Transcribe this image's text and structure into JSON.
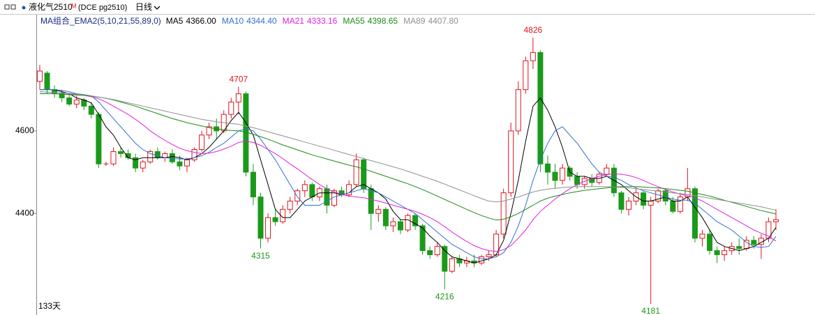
{
  "chart_data": {
    "type": "candlestick",
    "title": "液化气2510",
    "title_tag": "M",
    "subtitle": "(DCE pg2510)",
    "period": "日线",
    "indicator": "MA组合_EMA2(5,10,21,55,89,0)",
    "bar_count": "133天",
    "ylim": [
      4154,
      4880
    ],
    "yticks": [
      4600,
      4400
    ],
    "up_color": "#e0141e",
    "down_color": "#1a9a1a",
    "candles": {
      "open": [
        4720,
        4740,
        4700,
        4690,
        4680,
        4665,
        4675,
        4660,
        4640,
        4520,
        4520,
        4550,
        4545,
        4535,
        4510,
        4525,
        4550,
        4535,
        4545,
        4525,
        4515,
        4530,
        4555,
        4590,
        4610,
        4600,
        4640,
        4670,
        4690,
        4500,
        4440,
        4340,
        4390,
        4380,
        4410,
        4430,
        4455,
        4470,
        4440,
        4460,
        4420,
        4455,
        4445,
        4470,
        4530,
        4460,
        4400,
        4410,
        4370,
        4380,
        4360,
        4395,
        4370,
        4310,
        4300,
        4320,
        4260,
        4290,
        4280,
        4285,
        4280,
        4295,
        4300,
        4350,
        4450,
        4600,
        4700,
        4770,
        4790,
        4520,
        4500,
        4480,
        4510,
        4490,
        4470,
        4485,
        4475,
        4495,
        4510,
        4450,
        4410,
        4430,
        4450,
        4420,
        4430,
        4455,
        4430,
        4405,
        4440,
        4460,
        4340,
        4350,
        4310,
        4300,
        4310,
        4320,
        4315,
        4335,
        4325,
        4340,
        4380
      ],
      "high": [
        4760,
        4745,
        4710,
        4700,
        4690,
        4685,
        4680,
        4670,
        4645,
        4525,
        4560,
        4560,
        4555,
        4545,
        4530,
        4555,
        4560,
        4550,
        4555,
        4540,
        4535,
        4560,
        4600,
        4620,
        4630,
        4650,
        4680,
        4707,
        4695,
        4520,
        4450,
        4400,
        4410,
        4420,
        4440,
        4460,
        4480,
        4475,
        4465,
        4470,
        4460,
        4465,
        4480,
        4545,
        4535,
        4470,
        4420,
        4415,
        4390,
        4385,
        4400,
        4400,
        4375,
        4320,
        4330,
        4325,
        4295,
        4300,
        4295,
        4300,
        4300,
        4310,
        4360,
        4460,
        4620,
        4720,
        4780,
        4826,
        4795,
        4540,
        4520,
        4520,
        4515,
        4500,
        4490,
        4495,
        4500,
        4520,
        4520,
        4455,
        4440,
        4460,
        4455,
        4440,
        4460,
        4460,
        4440,
        4450,
        4510,
        4465,
        4360,
        4360,
        4320,
        4320,
        4330,
        4340,
        4345,
        4345,
        4350,
        4390,
        4410
      ],
      "low": [
        4700,
        4690,
        4680,
        4670,
        4660,
        4655,
        4650,
        4630,
        4510,
        4515,
        4515,
        4535,
        4530,
        4500,
        4500,
        4520,
        4530,
        4525,
        4520,
        4505,
        4500,
        4525,
        4550,
        4580,
        4580,
        4595,
        4630,
        4640,
        4490,
        4420,
        4315,
        4330,
        4370,
        4375,
        4400,
        4420,
        4440,
        4430,
        4430,
        4400,
        4415,
        4440,
        4440,
        4465,
        4450,
        4360,
        4380,
        4360,
        4355,
        4350,
        4355,
        4360,
        4300,
        4290,
        4295,
        4216,
        4255,
        4270,
        4270,
        4270,
        4275,
        4285,
        4295,
        4340,
        4440,
        4590,
        4690,
        4750,
        4500,
        4470,
        4460,
        4470,
        4480,
        4460,
        4460,
        4465,
        4470,
        4490,
        4440,
        4400,
        4395,
        4420,
        4410,
        4181,
        4425,
        4420,
        4400,
        4400,
        4430,
        4330,
        4320,
        4300,
        4280,
        4285,
        4300,
        4300,
        4310,
        4315,
        4290,
        4330,
        4360
      ],
      "close": [
        4745,
        4700,
        4690,
        4680,
        4665,
        4675,
        4660,
        4640,
        4520,
        4520,
        4550,
        4545,
        4535,
        4510,
        4525,
        4550,
        4535,
        4545,
        4525,
        4515,
        4530,
        4555,
        4590,
        4610,
        4600,
        4640,
        4670,
        4690,
        4500,
        4440,
        4340,
        4390,
        4380,
        4410,
        4430,
        4455,
        4470,
        4440,
        4460,
        4420,
        4455,
        4445,
        4470,
        4530,
        4460,
        4400,
        4410,
        4370,
        4380,
        4360,
        4395,
        4370,
        4310,
        4300,
        4320,
        4260,
        4290,
        4280,
        4285,
        4280,
        4295,
        4300,
        4350,
        4450,
        4600,
        4700,
        4770,
        4790,
        4520,
        4500,
        4480,
        4510,
        4490,
        4470,
        4485,
        4475,
        4495,
        4510,
        4450,
        4410,
        4430,
        4450,
        4420,
        4430,
        4455,
        4430,
        4405,
        4440,
        4460,
        4340,
        4350,
        4310,
        4300,
        4310,
        4320,
        4315,
        4335,
        4325,
        4340,
        4380,
        4385
      ]
    },
    "series": [
      {
        "name": "MA5",
        "color": "#000000",
        "current": {
          "value": 4366,
          "label": "4366.00"
        },
        "values": [
          4700,
          4700,
          4700,
          4695,
          4690,
          4680,
          4675,
          4668,
          4640,
          4610,
          4590,
          4560,
          4535,
          4530,
          4535,
          4535,
          4535,
          4535,
          4538,
          4535,
          4530,
          4535,
          4545,
          4560,
          4580,
          4600,
          4625,
          4645,
          4620,
          4590,
          4530,
          4470,
          4410,
          4390,
          4390,
          4410,
          4430,
          4440,
          4450,
          4450,
          4450,
          4445,
          4450,
          4465,
          4470,
          4460,
          4450,
          4435,
          4405,
          4385,
          4385,
          4375,
          4365,
          4345,
          4330,
          4310,
          4295,
          4290,
          4285,
          4280,
          4285,
          4290,
          4300,
          4335,
          4400,
          4480,
          4575,
          4660,
          4680,
          4650,
          4610,
          4560,
          4500,
          4490,
          4490,
          4485,
          4485,
          4490,
          4480,
          4470,
          4455,
          4440,
          4430,
          4430,
          4435,
          4440,
          4430,
          4430,
          4440,
          4415,
          4390,
          4360,
          4330,
          4320,
          4315,
          4310,
          4315,
          4320,
          4330,
          4340,
          4366
        ]
      },
      {
        "name": "MA10",
        "color": "#3070d0",
        "current": {
          "value": 4344.4,
          "label": "4344.40"
        },
        "values": [
          4700,
          4700,
          4700,
          4698,
          4695,
          4690,
          4688,
          4685,
          4670,
          4650,
          4630,
          4610,
          4590,
          4570,
          4555,
          4545,
          4540,
          4535,
          4533,
          4532,
          4532,
          4535,
          4540,
          4548,
          4560,
          4570,
          4585,
          4600,
          4605,
          4600,
          4580,
          4555,
          4530,
          4500,
          4470,
          4440,
          4420,
          4420,
          4420,
          4430,
          4440,
          4445,
          4450,
          4455,
          4460,
          4455,
          4450,
          4440,
          4430,
          4420,
          4410,
          4400,
          4385,
          4370,
          4355,
          4340,
          4325,
          4315,
          4305,
          4295,
          4290,
          4290,
          4295,
          4305,
          4330,
          4370,
          4420,
          4480,
          4530,
          4570,
          4600,
          4610,
          4590,
          4570,
          4545,
          4520,
          4500,
          4490,
          4488,
          4480,
          4470,
          4462,
          4455,
          4450,
          4445,
          4440,
          4435,
          4432,
          4432,
          4425,
          4410,
          4395,
          4380,
          4370,
          4360,
          4345,
          4330,
          4320,
          4318,
          4320,
          4344.4
        ]
      },
      {
        "name": "MA21",
        "color": "#e020e0",
        "current": {
          "value": 4333.16,
          "label": "4333.16"
        },
        "values": [
          4695,
          4694,
          4693,
          4692,
          4690,
          4688,
          4686,
          4683,
          4678,
          4670,
          4660,
          4650,
          4640,
          4628,
          4615,
          4600,
          4588,
          4577,
          4567,
          4558,
          4552,
          4548,
          4545,
          4546,
          4550,
          4556,
          4563,
          4572,
          4575,
          4572,
          4565,
          4555,
          4545,
          4533,
          4520,
          4508,
          4495,
          4482,
          4470,
          4460,
          4452,
          4446,
          4442,
          4440,
          4438,
          4434,
          4430,
          4425,
          4420,
          4415,
          4410,
          4405,
          4398,
          4390,
          4380,
          4368,
          4355,
          4343,
          4332,
          4322,
          4315,
          4310,
          4308,
          4312,
          4322,
          4340,
          4360,
          4385,
          4405,
          4420,
          4435,
          4448,
          4460,
          4470,
          4478,
          4485,
          4490,
          4494,
          4496,
          4495,
          4492,
          4487,
          4480,
          4472,
          4465,
          4458,
          4452,
          4447,
          4443,
          4438,
          4430,
          4420,
          4410,
          4400,
          4390,
          4380,
          4370,
          4360,
          4352,
          4345,
          4333.16
        ]
      },
      {
        "name": "MA55",
        "color": "#1a8a1a",
        "current": {
          "value": 4398.65,
          "label": "4398.65"
        },
        "values": [
          4690,
          4690,
          4690,
          4689,
          4688,
          4687,
          4686,
          4684,
          4682,
          4679,
          4675,
          4670,
          4665,
          4660,
          4654,
          4648,
          4642,
          4636,
          4630,
          4625,
          4620,
          4616,
          4612,
          4608,
          4605,
          4603,
          4601,
          4600,
          4597,
          4592,
          4586,
          4580,
          4573,
          4566,
          4560,
          4554,
          4548,
          4542,
          4537,
          4532,
          4527,
          4522,
          4517,
          4513,
          4508,
          4502,
          4496,
          4490,
          4484,
          4478,
          4472,
          4465,
          4458,
          4450,
          4442,
          4434,
          4426,
          4418,
          4410,
          4402,
          4395,
          4389,
          4384,
          4386,
          4392,
          4400,
          4410,
          4420,
          4430,
          4437,
          4442,
          4446,
          4450,
          4453,
          4456,
          4458,
          4460,
          4462,
          4464,
          4465,
          4465,
          4465,
          4464,
          4463,
          4462,
          4460,
          4458,
          4456,
          4454,
          4450,
          4446,
          4442,
          4437,
          4432,
          4427,
          4422,
          4417,
          4412,
          4407,
          4403,
          4398.65
        ]
      },
      {
        "name": "MA89",
        "color": "#909090",
        "current": {
          "value": 4407.8,
          "label": "4407.80"
        },
        "values": [
          4695,
          4694,
          4693,
          4692,
          4691,
          4689,
          4687,
          4685,
          4682,
          4679,
          4676,
          4672,
          4668,
          4664,
          4660,
          4656,
          4652,
          4648,
          4644,
          4640,
          4636,
          4632,
          4628,
          4625,
          4622,
          4620,
          4618,
          4616,
          4612,
          4608,
          4603,
          4598,
          4593,
          4588,
          4583,
          4578,
          4573,
          4568,
          4563,
          4558,
          4553,
          4548,
          4543,
          4538,
          4533,
          4528,
          4523,
          4518,
          4513,
          4508,
          4502,
          4496,
          4490,
          4484,
          4478,
          4471,
          4464,
          4457,
          4450,
          4443,
          4436,
          4430,
          4428,
          4430,
          4435,
          4440,
          4446,
          4452,
          4456,
          4459,
          4461,
          4463,
          4464,
          4465,
          4465,
          4465,
          4465,
          4465,
          4464,
          4463,
          4462,
          4460,
          4458,
          4456,
          4454,
          4452,
          4450,
          4448,
          4446,
          4443,
          4440,
          4437,
          4434,
          4431,
          4428,
          4425,
          4422,
          4419,
          4416,
          4412,
          4407.8
        ]
      }
    ]
  }
}
